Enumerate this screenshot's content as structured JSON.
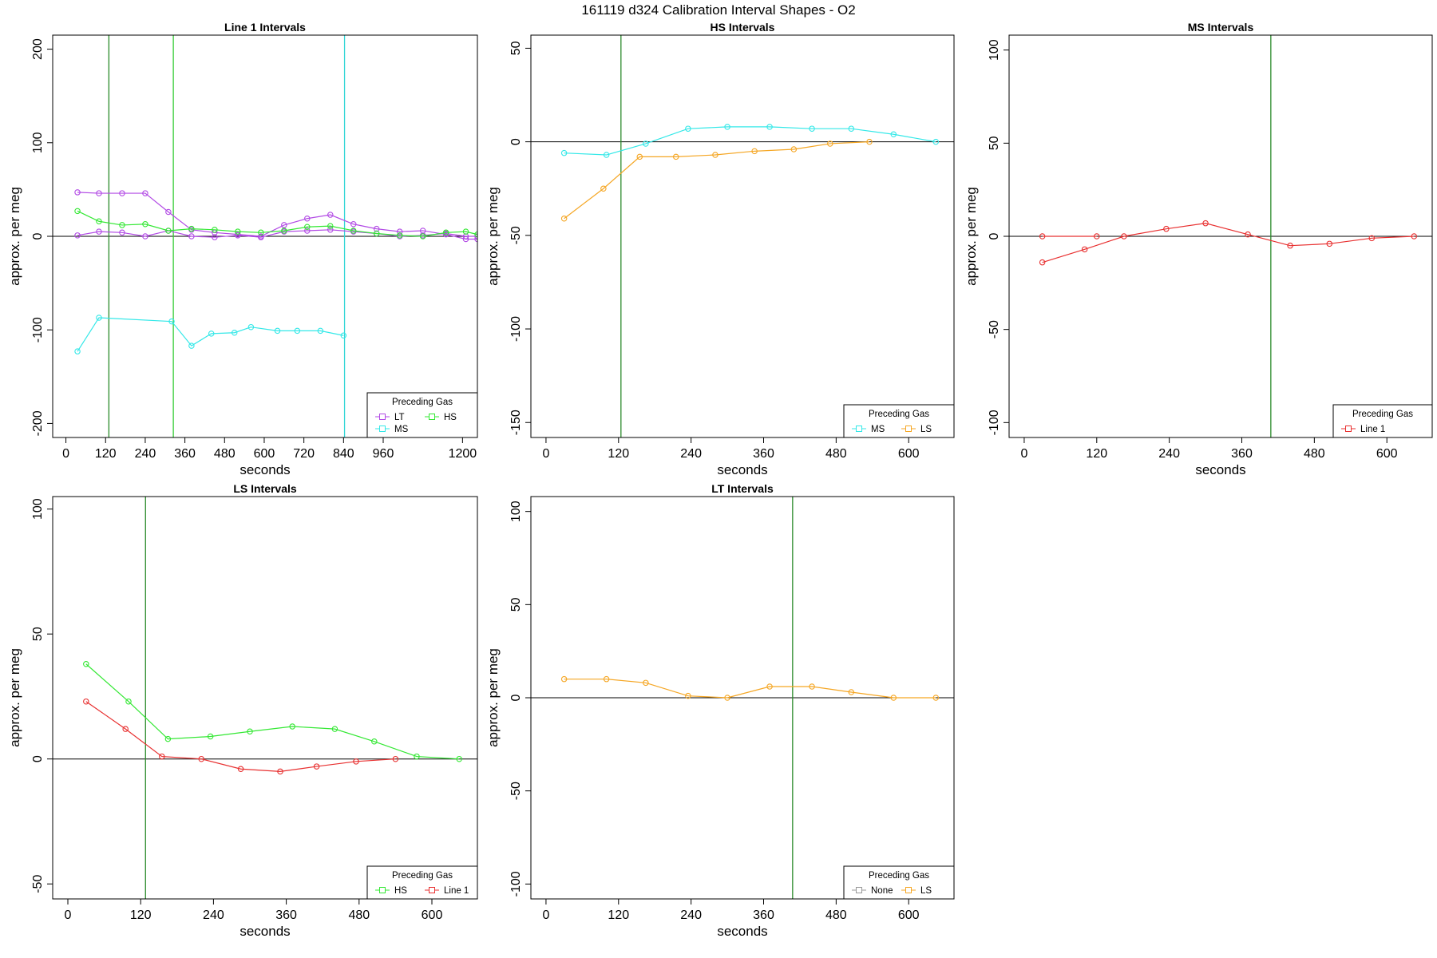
{
  "page": {
    "title": "161119   d324   Calibration Interval Shapes - O2"
  },
  "colors": {
    "LT": "#b24ae5",
    "HS": "#33e833",
    "MS": "#33e8e8",
    "LS": "#f5a623",
    "Line 1": "#e83030",
    "None": "#999999",
    "vline_dark_green": "#2a8a2a",
    "vline_green": "#33cc33",
    "vline_cyan": "#33d6d6"
  },
  "chart_data": [
    {
      "type": "line",
      "title": "Line 1 Intervals",
      "xlabel": "seconds",
      "ylabel": "approx. per meg",
      "xlim": [
        -40,
        1245
      ],
      "ylim": [
        -215,
        215
      ],
      "xticks": [
        0,
        120,
        240,
        360,
        480,
        600,
        720,
        840,
        960,
        1200
      ],
      "yticks": [
        -200,
        -100,
        0,
        100,
        200
      ],
      "hline": 0,
      "vlines": [
        {
          "x": 130,
          "color": "vline_dark_green"
        },
        {
          "x": 325,
          "color": "vline_green"
        },
        {
          "x": 843,
          "color": "vline_cyan"
        }
      ],
      "legend": {
        "title": "Preceding Gas",
        "position": "bottom-right",
        "entries": [
          "LT",
          "HS",
          "MS"
        ]
      },
      "series": [
        {
          "name": "LT",
          "x": [
            35,
            100,
            170,
            240,
            310,
            380,
            450,
            520,
            590,
            660,
            730,
            800,
            870,
            940,
            1010,
            1080,
            1150,
            1210,
            1245
          ],
          "y": [
            47,
            46,
            46,
            46,
            26,
            7,
            4,
            2,
            0,
            12,
            19,
            23,
            13,
            8,
            5,
            6,
            2,
            -3,
            -3
          ]
        },
        {
          "name": "LT",
          "x": [
            35,
            100,
            170,
            240,
            310,
            380,
            450,
            520,
            590,
            660,
            730,
            800,
            870,
            940,
            1010,
            1080,
            1150,
            1210,
            1245
          ],
          "y": [
            1,
            5,
            4,
            0,
            6,
            0,
            -1,
            1,
            -1,
            5,
            6,
            7,
            5,
            3,
            0,
            1,
            3,
            0,
            0
          ]
        },
        {
          "name": "HS",
          "x": [
            35,
            100,
            170,
            240,
            310,
            380,
            450,
            520,
            590,
            660,
            730,
            800,
            870,
            940,
            1010,
            1080,
            1150,
            1210,
            1245
          ],
          "y": [
            27,
            16,
            12,
            13,
            6,
            8,
            7,
            5,
            4,
            6,
            10,
            11,
            6,
            3,
            1,
            0,
            4,
            5,
            2
          ]
        },
        {
          "name": "MS",
          "x": [
            35,
            100,
            320,
            380,
            440,
            510,
            560,
            640,
            700,
            770,
            840,
            890
          ],
          "y": [
            -123,
            -87,
            -91,
            -117,
            -104,
            -103,
            -97,
            -101,
            -101,
            -101,
            -106,
            null
          ]
        }
      ]
    },
    {
      "type": "line",
      "title": "HS Intervals",
      "xlabel": "seconds",
      "ylabel": "approx. per meg",
      "xlim": [
        -25,
        675
      ],
      "ylim": [
        -158,
        57
      ],
      "xticks": [
        0,
        120,
        240,
        360,
        480,
        600
      ],
      "yticks": [
        -150,
        -100,
        -50,
        0,
        50
      ],
      "hline": 0,
      "vlines": [
        {
          "x": 124,
          "color": "vline_dark_green"
        }
      ],
      "legend": {
        "title": "Preceding Gas",
        "position": "bottom-right",
        "entries": [
          "MS",
          "LS"
        ]
      },
      "series": [
        {
          "name": "MS",
          "x": [
            30,
            100,
            165,
            235,
            300,
            370,
            440,
            505,
            575,
            645
          ],
          "y": [
            -6,
            -7,
            -1,
            7,
            8,
            8,
            7,
            7,
            4,
            0
          ]
        },
        {
          "name": "LS",
          "x": [
            30,
            95,
            155,
            215,
            280,
            345,
            410,
            470,
            535
          ],
          "y": [
            -41,
            -25,
            -8,
            -8,
            -7,
            -5,
            -4,
            -1,
            0
          ]
        }
      ]
    },
    {
      "type": "line",
      "title": "MS Intervals",
      "xlabel": "seconds",
      "ylabel": "approx. per meg",
      "xlim": [
        -25,
        675
      ],
      "ylim": [
        -108,
        108
      ],
      "xticks": [
        0,
        120,
        240,
        360,
        480,
        600
      ],
      "yticks": [
        -100,
        -50,
        0,
        50,
        100
      ],
      "hline": 0,
      "vlines": [
        {
          "x": 408,
          "color": "vline_dark_green"
        }
      ],
      "legend": {
        "title": "Preceding Gas",
        "position": "bottom-right",
        "entries": [
          "Line 1"
        ]
      },
      "series": [
        {
          "name": "Line 1",
          "x": [
            30,
            100,
            165,
            235,
            300,
            370,
            440,
            505,
            575,
            645
          ],
          "y": [
            -14,
            -7,
            0,
            4,
            7,
            1,
            -5,
            -4,
            -1,
            0
          ]
        },
        {
          "name": "Line 1",
          "x": [
            30,
            120
          ],
          "y": [
            0,
            0
          ]
        }
      ]
    },
    {
      "type": "line",
      "title": "LS Intervals",
      "xlabel": "seconds",
      "ylabel": "approx. per meg",
      "xlim": [
        -25,
        675
      ],
      "ylim": [
        -56,
        105
      ],
      "xticks": [
        0,
        120,
        240,
        360,
        480,
        600
      ],
      "yticks": [
        -50,
        0,
        50,
        100
      ],
      "hline": 0,
      "vlines": [
        {
          "x": 128,
          "color": "vline_dark_green"
        }
      ],
      "legend": {
        "title": "Preceding Gas",
        "position": "bottom-right",
        "entries": [
          "HS",
          "Line 1"
        ]
      },
      "series": [
        {
          "name": "HS",
          "x": [
            30,
            100,
            165,
            235,
            300,
            370,
            440,
            505,
            575,
            645
          ],
          "y": [
            38,
            23,
            8,
            9,
            11,
            13,
            12,
            7,
            1,
            0
          ]
        },
        {
          "name": "Line 1",
          "x": [
            30,
            95,
            155,
            220,
            285,
            350,
            410,
            475,
            540
          ],
          "y": [
            23,
            12,
            1,
            0,
            -4,
            -5,
            -3,
            -1,
            0
          ]
        }
      ]
    },
    {
      "type": "line",
      "title": "LT Intervals",
      "xlabel": "seconds",
      "ylabel": "approx. per meg",
      "xlim": [
        -25,
        675
      ],
      "ylim": [
        -108,
        108
      ],
      "xticks": [
        0,
        120,
        240,
        360,
        480,
        600
      ],
      "yticks": [
        -100,
        -50,
        0,
        50,
        100
      ],
      "hline": 0,
      "vlines": [
        {
          "x": 408,
          "color": "vline_dark_green"
        }
      ],
      "legend": {
        "title": "Preceding Gas",
        "position": "bottom-right",
        "entries": [
          "None",
          "LS"
        ]
      },
      "series": [
        {
          "name": "LS",
          "x": [
            30,
            100,
            165,
            235,
            300,
            370,
            440,
            505,
            575,
            645
          ],
          "y": [
            10,
            10,
            8,
            1,
            0,
            6,
            6,
            3,
            0,
            0
          ]
        }
      ]
    }
  ]
}
